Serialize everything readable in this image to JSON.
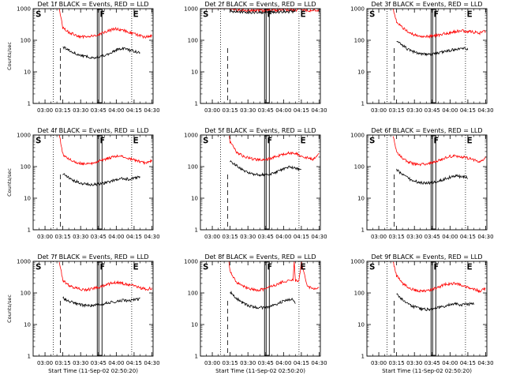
{
  "figure": {
    "xlabel": "Start Time (11-Sep-02 02:50:20)",
    "ylabel": "Counts/sec",
    "x_tick_labels": [
      "03:00",
      "03:15",
      "03:30",
      "03:45",
      "04:00",
      "04:15",
      "04:30"
    ],
    "y_tick_labels": [
      "1",
      "10",
      "100",
      "1000"
    ],
    "marker_labels": {
      "S": "S",
      "F": "F",
      "E": "E"
    },
    "colors": {
      "events": "#000000",
      "lld": "#ff0000",
      "axes": "#000000"
    }
  },
  "chart_data": [
    {
      "type": "line",
      "title": "Det 1f BLACK = Events, RED = LLD",
      "ylabel": "Counts/sec",
      "xlabel": "",
      "yscale": "log",
      "ylim": [
        1,
        1000
      ],
      "xlim": [
        "02:50",
        "04:31"
      ],
      "x": [
        "03:12",
        "03:15",
        "03:20",
        "03:25",
        "03:30",
        "03:35",
        "03:40",
        "03:45",
        "03:50",
        "03:55",
        "04:00",
        "04:05",
        "04:10",
        "04:15",
        "04:20",
        "04:25",
        "04:30"
      ],
      "series": [
        {
          "name": "LLD",
          "color": "#ff0000",
          "values": [
            1000,
            250,
            180,
            150,
            130,
            125,
            135,
            150,
            175,
            210,
            230,
            215,
            185,
            160,
            140,
            125,
            140
          ]
        },
        {
          "name": "Events",
          "color": "#000000",
          "values": [
            null,
            60,
            50,
            40,
            34,
            30,
            28,
            30,
            33,
            40,
            50,
            55,
            50,
            45,
            40,
            null,
            null
          ]
        }
      ],
      "markers": {
        "S": "02:51",
        "F": "03:45",
        "E": "04:13"
      },
      "dotted_lines": [
        "03:07",
        "04:13"
      ],
      "dashed_line": "03:13",
      "box": [
        "03:44",
        "03:48"
      ]
    },
    {
      "type": "line",
      "title": "Det 2f BLACK = Events, RED = LLD",
      "ylabel": "",
      "xlabel": "",
      "yscale": "log",
      "ylim": [
        1,
        1000
      ],
      "xlim": [
        "02:50",
        "04:31"
      ],
      "x": [
        "02:55",
        "03:05",
        "03:10",
        "03:12",
        "03:15",
        "03:20",
        "03:25",
        "03:30",
        "03:35",
        "03:40",
        "03:45",
        "03:50",
        "03:55",
        "04:00",
        "04:05",
        "04:10",
        "04:15",
        "04:20",
        "04:25",
        "04:30"
      ],
      "series": [
        {
          "name": "LLD",
          "color": "#ff0000",
          "values": [
            1000,
            1000,
            1000,
            1000,
            1000,
            920,
            900,
            880,
            870,
            870,
            880,
            890,
            900,
            910,
            920,
            910,
            900,
            890,
            880,
            920
          ]
        },
        {
          "name": "Events",
          "color": "#000000",
          "values": [
            null,
            null,
            null,
            null,
            850,
            800,
            780,
            770,
            760,
            760,
            770,
            780,
            790,
            800,
            810,
            820,
            null,
            null,
            null,
            null
          ]
        }
      ],
      "markers": {
        "S": "02:51",
        "F": "03:45",
        "E": "04:13"
      },
      "dotted_lines": [
        "03:07",
        "04:13"
      ],
      "dashed_line": "03:13",
      "box": [
        "03:44",
        "03:48"
      ]
    },
    {
      "type": "line",
      "title": "Det 3f BLACK = Events, RED = LLD",
      "ylabel": "",
      "xlabel": "",
      "yscale": "log",
      "ylim": [
        1,
        1000
      ],
      "xlim": [
        "02:50",
        "04:31"
      ],
      "x": [
        "03:12",
        "03:15",
        "03:20",
        "03:25",
        "03:30",
        "03:35",
        "03:40",
        "03:45",
        "03:50",
        "03:55",
        "04:00",
        "04:05",
        "04:10",
        "04:15",
        "04:20",
        "04:25",
        "04:30"
      ],
      "series": [
        {
          "name": "LLD",
          "color": "#ff0000",
          "values": [
            1000,
            400,
            250,
            180,
            150,
            135,
            130,
            135,
            145,
            160,
            175,
            190,
            200,
            190,
            180,
            170,
            200
          ]
        },
        {
          "name": "Events",
          "color": "#000000",
          "values": [
            null,
            100,
            70,
            50,
            42,
            38,
            36,
            37,
            40,
            44,
            48,
            52,
            55,
            52,
            null,
            null,
            null
          ]
        }
      ],
      "markers": {
        "S": "02:51",
        "F": "03:45",
        "E": "04:13"
      },
      "dotted_lines": [
        "03:07",
        "04:13"
      ],
      "dashed_line": "03:13",
      "box": [
        "03:44",
        "03:48"
      ]
    },
    {
      "type": "line",
      "title": "Det 4f BLACK = Events, RED = LLD",
      "ylabel": "Counts/sec",
      "xlabel": "",
      "yscale": "log",
      "ylim": [
        1,
        1000
      ],
      "xlim": [
        "02:50",
        "04:31"
      ],
      "x": [
        "03:12",
        "03:15",
        "03:20",
        "03:25",
        "03:30",
        "03:35",
        "03:40",
        "03:45",
        "03:50",
        "03:55",
        "04:00",
        "04:05",
        "04:10",
        "04:15",
        "04:20",
        "04:25",
        "04:30"
      ],
      "series": [
        {
          "name": "LLD",
          "color": "#ff0000",
          "values": [
            1000,
            250,
            170,
            140,
            125,
            120,
            130,
            145,
            165,
            195,
            215,
            205,
            180,
            160,
            140,
            125,
            160
          ]
        },
        {
          "name": "Events",
          "color": "#000000",
          "values": [
            null,
            60,
            45,
            35,
            30,
            28,
            27,
            28,
            30,
            34,
            40,
            42,
            40,
            44,
            46,
            null,
            null
          ]
        }
      ],
      "markers": {
        "S": "02:51",
        "F": "03:45",
        "E": "04:13"
      },
      "dotted_lines": [
        "03:07",
        "04:13"
      ],
      "dashed_line": "03:13",
      "box": [
        "03:44",
        "03:48"
      ]
    },
    {
      "type": "line",
      "title": "Det 5f BLACK = Events, RED = LLD",
      "ylabel": "",
      "xlabel": "",
      "yscale": "log",
      "ylim": [
        1,
        1000
      ],
      "xlim": [
        "02:50",
        "04:31"
      ],
      "x": [
        "03:14",
        "03:15",
        "03:20",
        "03:25",
        "03:30",
        "03:35",
        "03:40",
        "03:45",
        "03:50",
        "03:55",
        "04:00",
        "04:05",
        "04:10",
        "04:15",
        "04:20",
        "04:25",
        "04:30"
      ],
      "series": [
        {
          "name": "LLD",
          "color": "#ff0000",
          "values": [
            1000,
            600,
            300,
            220,
            190,
            170,
            165,
            170,
            185,
            215,
            250,
            270,
            255,
            220,
            190,
            170,
            260
          ]
        },
        {
          "name": "Events",
          "color": "#000000",
          "values": [
            null,
            150,
            110,
            80,
            65,
            58,
            55,
            56,
            60,
            70,
            85,
            95,
            90,
            80,
            null,
            null,
            null
          ]
        }
      ],
      "markers": {
        "S": "02:51",
        "F": "03:45",
        "E": "04:13"
      },
      "dotted_lines": [
        "03:07",
        "04:13"
      ],
      "dashed_line": "03:13",
      "box": [
        "03:44",
        "03:48"
      ]
    },
    {
      "type": "line",
      "title": "Det 6f BLACK = Events, RED = LLD",
      "ylabel": "",
      "xlabel": "",
      "yscale": "log",
      "ylim": [
        1,
        1000
      ],
      "xlim": [
        "02:50",
        "04:31"
      ],
      "x": [
        "03:12",
        "03:15",
        "03:20",
        "03:25",
        "03:30",
        "03:35",
        "03:40",
        "03:45",
        "03:50",
        "03:55",
        "04:00",
        "04:05",
        "04:10",
        "04:15",
        "04:20",
        "04:25",
        "04:30"
      ],
      "series": [
        {
          "name": "LLD",
          "color": "#ff0000",
          "values": [
            1000,
            300,
            180,
            140,
            120,
            115,
            120,
            135,
            155,
            185,
            210,
            220,
            205,
            185,
            160,
            140,
            200
          ]
        },
        {
          "name": "Events",
          "color": "#000000",
          "values": [
            null,
            80,
            55,
            42,
            35,
            31,
            30,
            31,
            34,
            40,
            46,
            50,
            48,
            45,
            null,
            null,
            null
          ]
        }
      ],
      "markers": {
        "S": "02:51",
        "F": "03:45",
        "E": "04:13"
      },
      "dotted_lines": [
        "03:07",
        "04:13"
      ],
      "dashed_line": "03:13",
      "box": [
        "03:44",
        "03:48"
      ]
    },
    {
      "type": "line",
      "title": "Det 7f BLACK = Events, RED = LLD",
      "ylabel": "Counts/sec",
      "xlabel": "Start Time (11-Sep-02 02:50:20)",
      "yscale": "log",
      "ylim": [
        1,
        1000
      ],
      "xlim": [
        "02:50",
        "04:31"
      ],
      "x": [
        "03:12",
        "03:15",
        "03:20",
        "03:25",
        "03:30",
        "03:35",
        "03:40",
        "03:45",
        "03:50",
        "03:55",
        "04:00",
        "04:05",
        "04:10",
        "04:15",
        "04:20",
        "04:25",
        "04:30"
      ],
      "series": [
        {
          "name": "LLD",
          "color": "#ff0000",
          "values": [
            1000,
            250,
            175,
            145,
            130,
            125,
            135,
            150,
            170,
            200,
            215,
            200,
            180,
            165,
            145,
            130,
            140
          ]
        },
        {
          "name": "Events",
          "color": "#000000",
          "values": [
            null,
            70,
            55,
            47,
            42,
            40,
            40,
            42,
            46,
            50,
            55,
            58,
            55,
            60,
            65,
            null,
            null
          ]
        }
      ],
      "markers": {
        "S": "02:51",
        "F": "03:45",
        "E": "04:13"
      },
      "dotted_lines": [
        "03:07",
        "04:13"
      ],
      "dashed_line": "03:13",
      "box": [
        "03:44",
        "03:48"
      ]
    },
    {
      "type": "line",
      "title": "Det 8f BLACK = Events, RED = LLD",
      "ylabel": "",
      "xlabel": "Start Time (11-Sep-02 02:50:20)",
      "yscale": "log",
      "ylim": [
        1,
        1000
      ],
      "xlim": [
        "02:50",
        "04:31"
      ],
      "x": [
        "03:14",
        "03:15",
        "03:20",
        "03:25",
        "03:30",
        "03:35",
        "03:40",
        "03:45",
        "03:50",
        "03:55",
        "04:00",
        "04:05",
        "04:08",
        "04:09",
        "04:10",
        "04:13",
        "04:15",
        "04:20",
        "04:25",
        "04:30"
      ],
      "series": [
        {
          "name": "LLD",
          "color": "#ff0000",
          "values": [
            1000,
            500,
            230,
            170,
            140,
            125,
            125,
            135,
            160,
            190,
            230,
            250,
            260,
            1000,
            250,
            240,
            1000,
            150,
            140,
            135
          ]
        },
        {
          "name": "Events",
          "color": "#000000",
          "values": [
            null,
            110,
            70,
            50,
            40,
            36,
            34,
            35,
            38,
            45,
            55,
            60,
            62,
            55,
            50,
            null,
            null,
            null,
            null,
            null
          ]
        }
      ],
      "markers": {
        "S": "02:51",
        "F": "03:45",
        "E": "04:13"
      },
      "dotted_lines": [
        "03:07",
        "04:13"
      ],
      "dashed_line": "03:13",
      "box": [
        "03:44",
        "03:48"
      ]
    },
    {
      "type": "line",
      "title": "Det 9f BLACK = Events, RED = LLD",
      "ylabel": "",
      "xlabel": "Start Time (11-Sep-02 02:50:20)",
      "yscale": "log",
      "ylim": [
        1,
        1000
      ],
      "xlim": [
        "02:50",
        "04:31"
      ],
      "x": [
        "03:12",
        "03:15",
        "03:20",
        "03:25",
        "03:30",
        "03:35",
        "03:40",
        "03:45",
        "03:50",
        "03:55",
        "04:00",
        "04:05",
        "04:10",
        "04:15",
        "04:20",
        "04:25",
        "04:30"
      ],
      "series": [
        {
          "name": "LLD",
          "color": "#ff0000",
          "values": [
            1000,
            350,
            200,
            150,
            125,
            115,
            118,
            130,
            150,
            180,
            200,
            195,
            175,
            150,
            130,
            115,
            140
          ]
        },
        {
          "name": "Events",
          "color": "#000000",
          "values": [
            null,
            90,
            60,
            45,
            36,
            32,
            30,
            31,
            34,
            38,
            43,
            45,
            42,
            44,
            46,
            null,
            null
          ]
        }
      ],
      "markers": {
        "S": "02:51",
        "F": "03:45",
        "E": "04:13"
      },
      "dotted_lines": [
        "03:07",
        "04:13"
      ],
      "dashed_line": "03:13",
      "box": [
        "03:44",
        "03:48"
      ]
    }
  ]
}
